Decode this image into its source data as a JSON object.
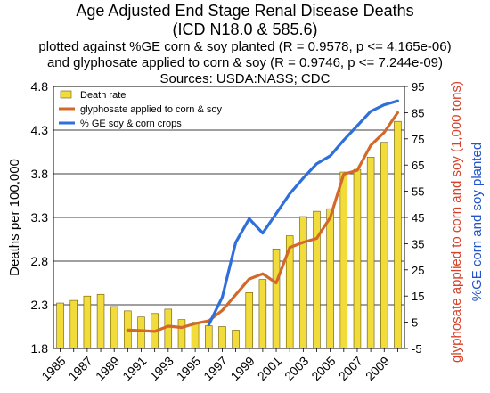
{
  "titles": {
    "line1": "Age Adjusted End Stage Renal Disease Deaths",
    "line2": "(ICD N18.0 & 585.6)",
    "line3": "plotted against %GE corn & soy planted (R = 0.9578, p <= 4.165e-06)",
    "line4": "and glyphosate applied to corn & soy (R = 0.9746, p <= 7.244e-09)",
    "line5": "Sources: USDA:NASS; CDC"
  },
  "chart_data": {
    "type": "bar",
    "categories": [
      1985,
      1986,
      1987,
      1988,
      1989,
      1990,
      1991,
      1992,
      1993,
      1994,
      1995,
      1996,
      1997,
      1998,
      1999,
      2000,
      2001,
      2002,
      2003,
      2004,
      2005,
      2006,
      2007,
      2008,
      2009,
      2010
    ],
    "xtick_labels": [
      "1985",
      "1987",
      "1989",
      "1991",
      "1993",
      "1995",
      "1997",
      "1999",
      "2001",
      "2003",
      "2005",
      "2007",
      "2009"
    ],
    "ylabel": "Deaths per 100,000",
    "ylim": [
      1.8,
      4.8
    ],
    "yticks": [
      "1.8",
      "2.3",
      "2.8",
      "3.3",
      "3.8",
      "4.3",
      "4.8"
    ],
    "y2label": "glyphosate applied to corn and soy (1,000 tons)",
    "y2label_color": "#d8402a",
    "y3label": "%GE corn and soy planted",
    "y3label_color": "#2255cc",
    "y2lim": [
      -5,
      95
    ],
    "y2ticks": [
      "-5",
      "5",
      "15",
      "25",
      "35",
      "45",
      "55",
      "65",
      "75",
      "85",
      "95"
    ],
    "grid": true,
    "legend_position": "top-left",
    "series": [
      {
        "name": "Death rate",
        "kind": "bar",
        "axis": "left",
        "color": "#f1dc3c",
        "values": [
          2.32,
          2.35,
          2.4,
          2.42,
          2.28,
          2.23,
          2.16,
          2.2,
          2.25,
          2.13,
          2.1,
          2.06,
          2.05,
          2.01,
          2.44,
          2.59,
          2.94,
          3.09,
          3.31,
          3.37,
          3.4,
          3.82,
          3.85,
          3.99,
          4.16,
          4.4
        ]
      },
      {
        "name": "glyphosate applied to corn & soy",
        "kind": "line",
        "axis": "right",
        "color": "#d2692a",
        "x": [
          1990,
          1991,
          1992,
          1993,
          1994,
          1995,
          1996,
          1997,
          1998,
          1999,
          2000,
          2001,
          2002,
          2003,
          2004,
          2005,
          2006,
          2007,
          2008,
          2009,
          2010
        ],
        "values": [
          2,
          1.8,
          1.5,
          3.5,
          3,
          4.5,
          5.5,
          9.5,
          15.5,
          21.5,
          23.5,
          20,
          33.5,
          35.5,
          37,
          45,
          61.5,
          63,
          72.5,
          77.5,
          85
        ]
      },
      {
        "name": "% GE soy & corn crops",
        "kind": "line",
        "axis": "right",
        "color": "#2f6fdb",
        "x": [
          1996,
          1997,
          1998,
          1999,
          2000,
          2001,
          2002,
          2003,
          2004,
          2005,
          2006,
          2007,
          2008,
          2009,
          2010
        ],
        "values": [
          4,
          14.5,
          35.5,
          44.5,
          39,
          46.5,
          54,
          60,
          65.5,
          68.5,
          74.5,
          80,
          85.5,
          88,
          89.5
        ]
      }
    ]
  }
}
